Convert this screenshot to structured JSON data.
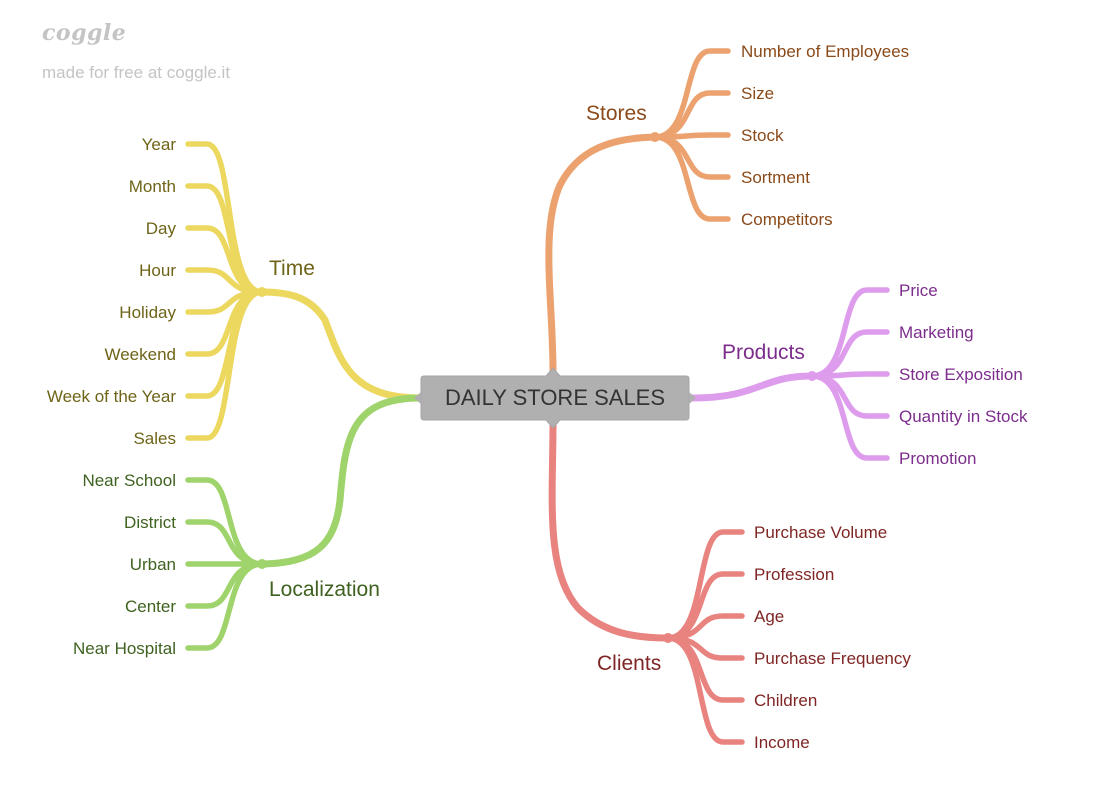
{
  "watermark": {
    "logo": "coggle",
    "subtitle": "made for free at coggle.it"
  },
  "root": {
    "label": "DAILY STORE SALES",
    "fill": "#b0b0b0",
    "text_color": "#333333"
  },
  "branches": [
    {
      "key": "stores",
      "label": "Stores",
      "color": "#eca26f",
      "text_color": "#8a4a1a",
      "children": [
        "Number of Employees",
        "Size",
        "Stock",
        "Sortment",
        "Competitors"
      ]
    },
    {
      "key": "products",
      "label": "Products",
      "color": "#de9cec",
      "text_color": "#7c2d8c",
      "children": [
        "Price",
        "Marketing",
        "Store Exposition",
        "Quantity in Stock",
        "Promotion"
      ]
    },
    {
      "key": "clients",
      "label": "Clients",
      "color": "#e8837f",
      "text_color": "#7f2624",
      "children": [
        "Purchase Volume",
        "Profession",
        "Age",
        "Purchase Frequency",
        "Children",
        "Income"
      ]
    },
    {
      "key": "time",
      "label": "Time",
      "color": "#ecd75f",
      "text_color": "#6e6418",
      "children": [
        "Year",
        "Month",
        "Day",
        "Hour",
        "Holiday",
        "Weekend",
        "Week of the Year",
        "Sales"
      ]
    },
    {
      "key": "localization",
      "label": "Localization",
      "color": "#9fd36b",
      "text_color": "#3f6220",
      "children": [
        "Near School",
        "District",
        "Urban",
        "Center",
        "Near Hospital"
      ]
    }
  ]
}
